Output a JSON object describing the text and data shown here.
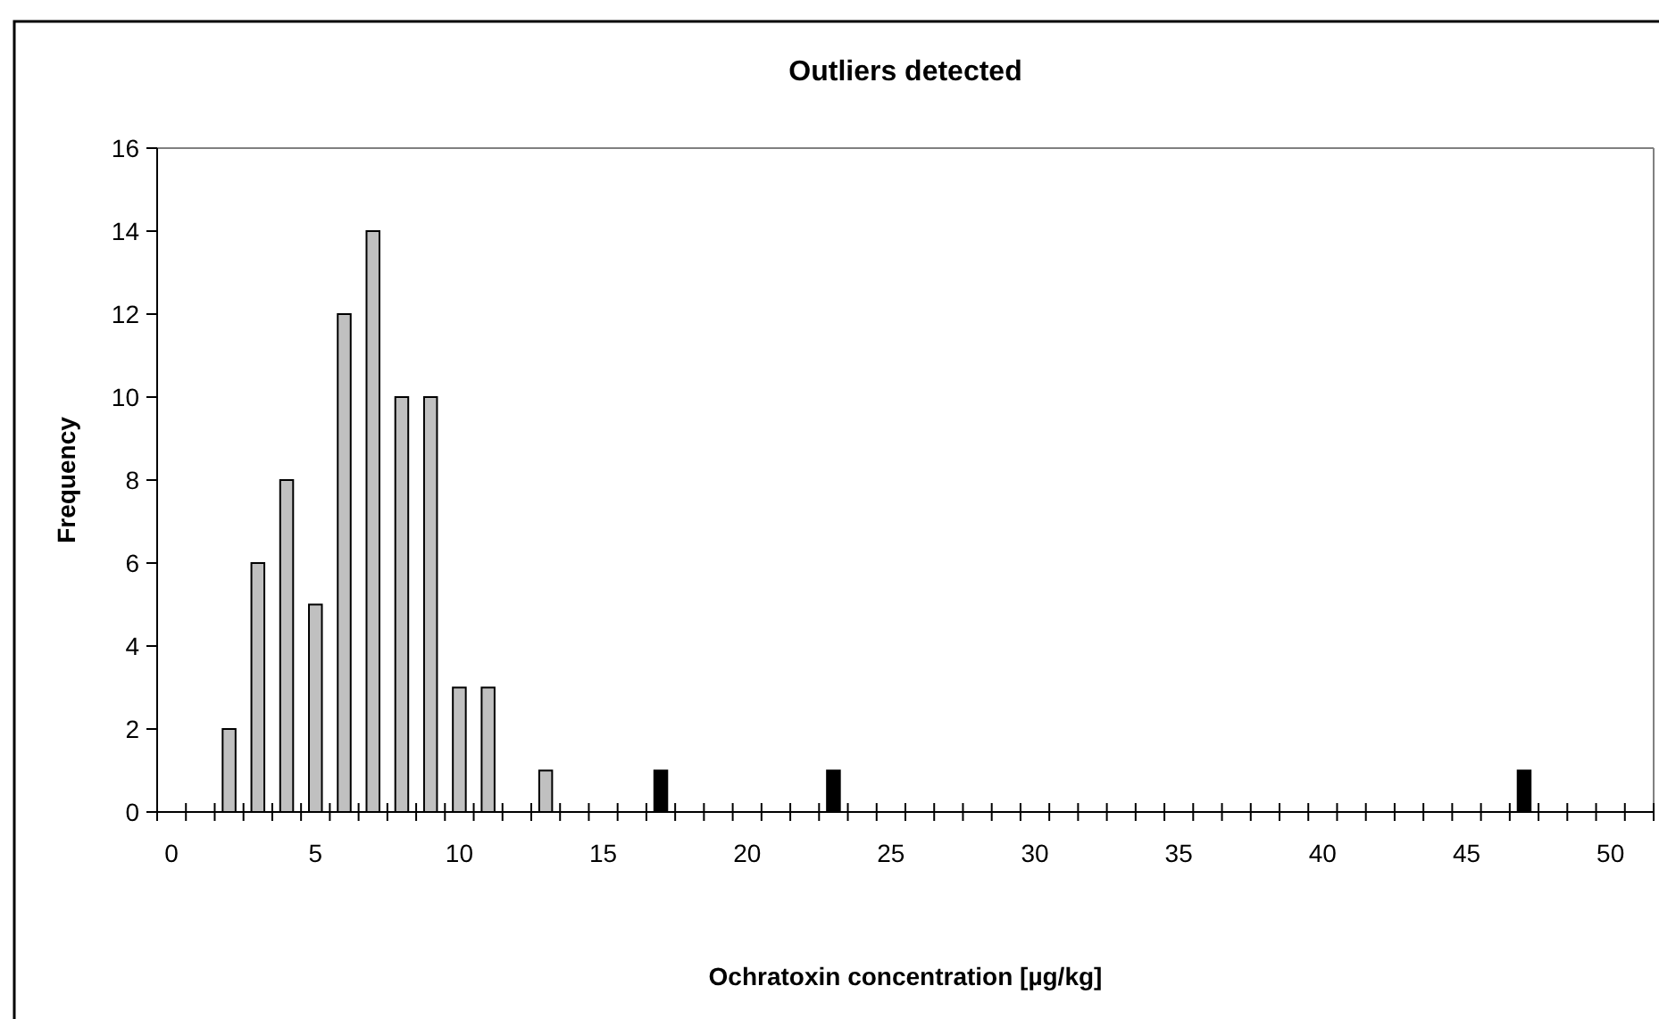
{
  "chart_data": {
    "type": "bar",
    "title": "Outliers detected",
    "xlabel": "Ochratoxin concentration [µg/kg]",
    "ylabel": "Frequency",
    "categories": [
      "0",
      null,
      null,
      null,
      null,
      "5",
      null,
      null,
      null,
      null,
      "10",
      null,
      null,
      null,
      null,
      "15",
      null,
      null,
      null,
      null,
      "20",
      null,
      null,
      null,
      null,
      "25",
      null,
      null,
      null,
      null,
      "30",
      null,
      null,
      null,
      null,
      "35",
      null,
      null,
      null,
      null,
      "40",
      null,
      null,
      null,
      null,
      "45",
      null,
      null,
      null,
      null,
      "50",
      null
    ],
    "series": [
      {
        "color": "#c0c0c0",
        "values": [
          null,
          null,
          2,
          6,
          8,
          5,
          12,
          14,
          10,
          10,
          3,
          3,
          null,
          1,
          null,
          null,
          null,
          null,
          null,
          null,
          null,
          null,
          null,
          null,
          null,
          null,
          null,
          null,
          null,
          null,
          null,
          null,
          null,
          null,
          null,
          null,
          null,
          null,
          null,
          null,
          null,
          null,
          null,
          null,
          null,
          null,
          null,
          null,
          null,
          null,
          null,
          null
        ]
      },
      {
        "color": "#000000",
        "values": [
          null,
          null,
          null,
          null,
          null,
          null,
          null,
          null,
          null,
          null,
          null,
          null,
          null,
          null,
          null,
          null,
          null,
          1,
          null,
          null,
          null,
          null,
          null,
          1,
          null,
          null,
          null,
          null,
          null,
          null,
          null,
          null,
          null,
          null,
          null,
          null,
          null,
          null,
          null,
          null,
          null,
          null,
          null,
          null,
          null,
          null,
          null,
          1,
          null,
          null,
          null,
          null
        ]
      }
    ],
    "ylim": [
      0,
      16
    ],
    "yticks": [
      0,
      2,
      4,
      6,
      8,
      10,
      12,
      14,
      16
    ],
    "grid": false
  }
}
